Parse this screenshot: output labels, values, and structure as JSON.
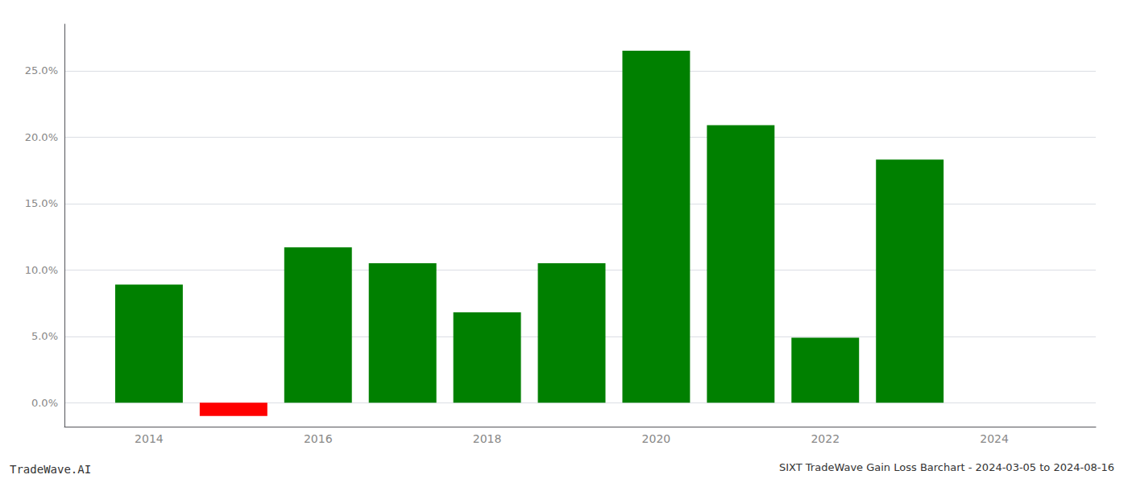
{
  "chart_data": {
    "type": "bar",
    "title": "SIXT TradeWave Gain Loss Barchart - 2024-03-05 to 2024-08-16",
    "annotations": [
      "TradeWave.AI"
    ],
    "x": [
      2014,
      2015,
      2016,
      2017,
      2018,
      2019,
      2020,
      2021,
      2022,
      2023,
      2024
    ],
    "values": [
      0.089,
      -0.01,
      0.117,
      0.105,
      0.068,
      0.105,
      0.265,
      0.209,
      0.049,
      0.183,
      0.0
    ],
    "colors": [
      "#008000",
      "#ff0000",
      "#008000",
      "#008000",
      "#008000",
      "#008000",
      "#008000",
      "#008000",
      "#008000",
      "#008000",
      "#008000"
    ],
    "xlim": [
      2013.0,
      2025.2
    ],
    "xticks": [
      2014,
      2016,
      2018,
      2020,
      2022,
      2024
    ],
    "ylim": [
      -0.018,
      0.285
    ],
    "yticks": [
      {
        "value": 0.0,
        "label": "0.0%"
      },
      {
        "value": 0.05,
        "label": "5.0%"
      },
      {
        "value": 0.1,
        "label": "10.0%"
      },
      {
        "value": 0.15,
        "label": "15.0%"
      },
      {
        "value": 0.2,
        "label": "20.0%"
      },
      {
        "value": 0.25,
        "label": "25.0%"
      }
    ],
    "grid": true
  }
}
